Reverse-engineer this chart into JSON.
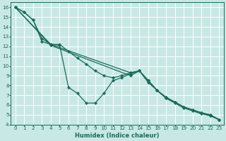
{
  "xlabel": "Humidex (Indice chaleur)",
  "bg_color": "#c8e8e5",
  "grid_color": "#ffffff",
  "line_color": "#1a6b5a",
  "xlim": [
    -0.5,
    23.5
  ],
  "ylim": [
    4,
    16.5
  ],
  "xticks": [
    0,
    1,
    2,
    3,
    4,
    5,
    6,
    7,
    8,
    9,
    10,
    11,
    12,
    13,
    14,
    15,
    16,
    17,
    18,
    19,
    20,
    21,
    22,
    23
  ],
  "yticks": [
    4,
    5,
    6,
    7,
    8,
    9,
    10,
    11,
    12,
    13,
    14,
    15,
    16
  ],
  "series": [
    {
      "x": [
        0,
        1,
        2,
        3,
        4,
        5,
        6,
        7,
        8,
        9,
        10,
        11,
        12,
        13,
        14,
        15,
        16,
        17,
        18,
        19,
        20,
        21,
        22,
        23
      ],
      "y": [
        16,
        15.5,
        14.7,
        12.8,
        12.2,
        12.1,
        7.8,
        7.2,
        6.2,
        6.2,
        7.2,
        8.5,
        8.8,
        9.2,
        9.5,
        8.5,
        7.5,
        6.7,
        6.3,
        5.8,
        5.5,
        5.2,
        4.9,
        4.5
      ],
      "ls": "-"
    },
    {
      "x": [
        0,
        1,
        2,
        3,
        4,
        5,
        6,
        7,
        8,
        9,
        10,
        11,
        12,
        13,
        14,
        15,
        16,
        17,
        18,
        19,
        20,
        21,
        22,
        23
      ],
      "y": [
        16,
        15.5,
        14.7,
        12.5,
        12.2,
        12.2,
        11.5,
        10.8,
        10.2,
        9.5,
        9.0,
        8.8,
        9.0,
        9.3,
        9.5,
        8.5,
        7.5,
        6.8,
        6.3,
        5.8,
        5.5,
        5.2,
        5.0,
        4.5
      ],
      "ls": "-"
    },
    {
      "x": [
        0,
        4,
        13,
        14,
        15,
        16,
        17,
        18,
        19,
        20,
        21,
        22,
        23
      ],
      "y": [
        16,
        12.2,
        9.3,
        9.5,
        8.5,
        7.5,
        6.8,
        6.3,
        5.8,
        5.5,
        5.2,
        5.0,
        4.5
      ],
      "ls": "-"
    },
    {
      "x": [
        0,
        4,
        13,
        14,
        15,
        16,
        17,
        18,
        19,
        20,
        21,
        22,
        23
      ],
      "y": [
        16,
        12.1,
        9.0,
        9.5,
        8.3,
        7.5,
        6.7,
        6.2,
        5.7,
        5.4,
        5.1,
        4.9,
        4.5
      ],
      "ls": "-"
    }
  ]
}
